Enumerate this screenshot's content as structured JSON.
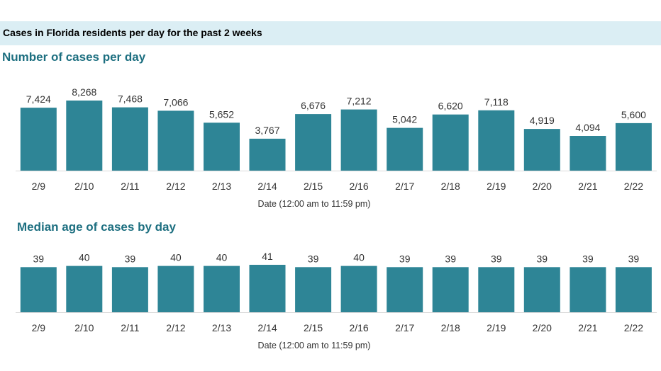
{
  "header": {
    "title": "Cases in Florida residents per day for the past 2 weeks",
    "bar_color": "#2e8596",
    "banner_color": "#dbeef4",
    "subtitle_color": "#1d6f80"
  },
  "chart_data": [
    {
      "type": "bar",
      "title": "Number of cases per day",
      "xlabel": "Date (12:00 am to 11:59 pm)",
      "ylabel": "",
      "categories": [
        "2/9",
        "2/10",
        "2/11",
        "2/12",
        "2/13",
        "2/14",
        "2/15",
        "2/16",
        "2/17",
        "2/18",
        "2/19",
        "2/20",
        "2/21",
        "2/22"
      ],
      "values": [
        7424,
        8268,
        7468,
        7066,
        5652,
        3767,
        6676,
        7212,
        5042,
        6620,
        7118,
        4919,
        4094,
        5600
      ],
      "value_labels": [
        "7,424",
        "8,268",
        "7,468",
        "7,066",
        "5,652",
        "3,767",
        "6,676",
        "7,212",
        "5,042",
        "6,620",
        "7,118",
        "4,919",
        "4,094",
        "5,600"
      ],
      "ylim": [
        0,
        8268
      ],
      "grid": false,
      "legend": "none"
    },
    {
      "type": "bar",
      "title": "Median age of cases by day",
      "xlabel": "Date (12:00 am to 11:59 pm)",
      "ylabel": "",
      "categories": [
        "2/9",
        "2/10",
        "2/11",
        "2/12",
        "2/13",
        "2/14",
        "2/15",
        "2/16",
        "2/17",
        "2/18",
        "2/19",
        "2/20",
        "2/21",
        "2/22"
      ],
      "values": [
        39,
        40,
        39,
        40,
        40,
        41,
        39,
        40,
        39,
        39,
        39,
        39,
        39,
        39
      ],
      "value_labels": [
        "39",
        "40",
        "39",
        "40",
        "40",
        "41",
        "39",
        "40",
        "39",
        "39",
        "39",
        "39",
        "39",
        "39"
      ],
      "ylim": [
        0,
        41
      ],
      "grid": false,
      "legend": "none"
    }
  ]
}
